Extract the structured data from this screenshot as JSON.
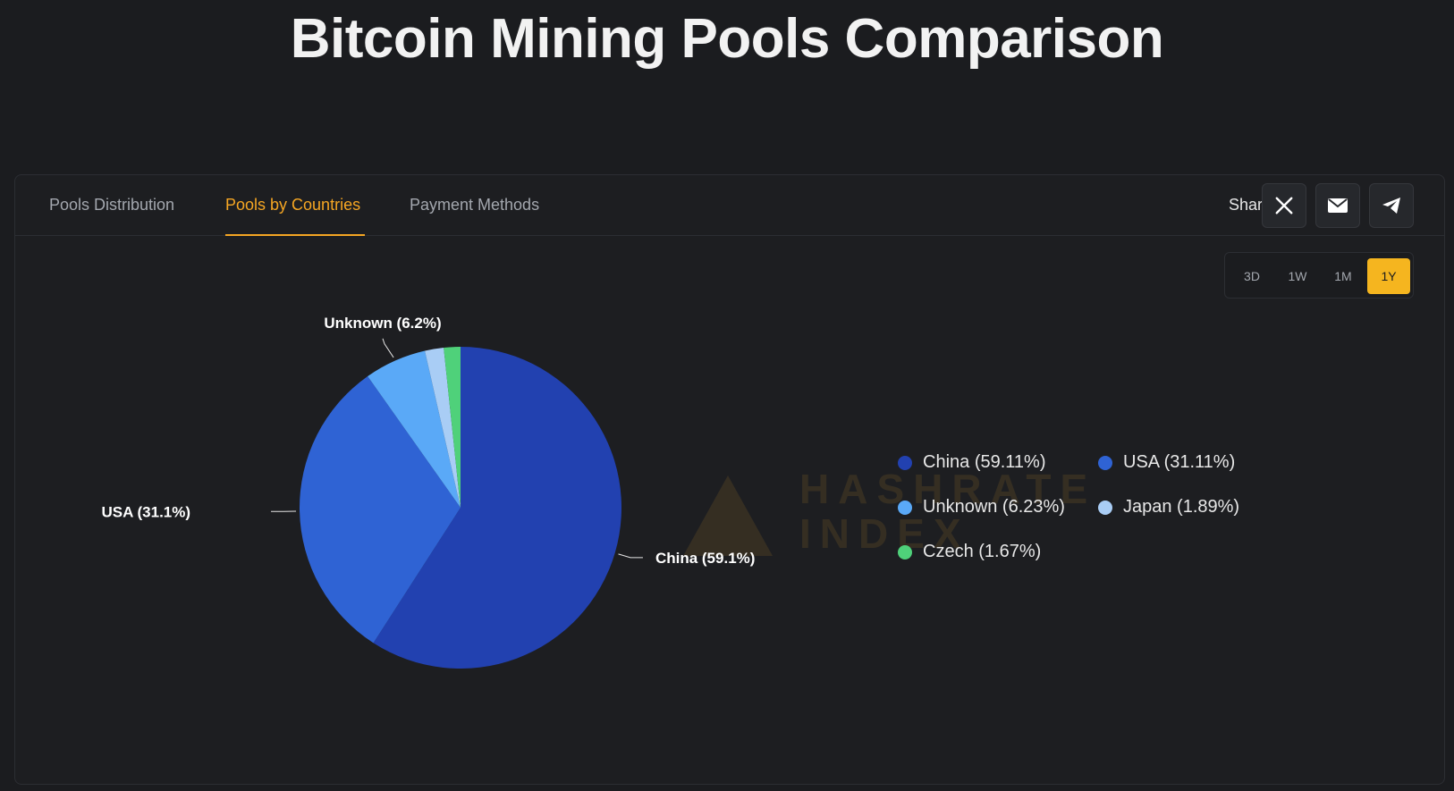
{
  "page": {
    "title": "Bitcoin Mining Pools Comparison"
  },
  "tabs": [
    {
      "label": "Pools Distribution",
      "active": false
    },
    {
      "label": "Pools by Countries",
      "active": true
    },
    {
      "label": "Payment Methods",
      "active": false
    }
  ],
  "share": {
    "label": "Share:",
    "buttons": [
      {
        "icon": "x-icon"
      },
      {
        "icon": "mail-icon"
      },
      {
        "icon": "telegram-icon"
      }
    ]
  },
  "ranges": [
    {
      "label": "3D",
      "active": false
    },
    {
      "label": "1W",
      "active": false
    },
    {
      "label": "1M",
      "active": false
    },
    {
      "label": "1Y",
      "active": true
    }
  ],
  "watermark": {
    "line1": "HASHRATE",
    "line2": "INDEX"
  },
  "colors": {
    "accent": "#f5a623",
    "china": "#2241b0",
    "usa": "#2f63d4",
    "unknown": "#5aa9f7",
    "japan": "#a9cdf5",
    "czech": "#4fd17a"
  },
  "chart_data": {
    "type": "pie",
    "slices": [
      {
        "name": "China",
        "value": 59.11,
        "label": "China (59.1%)",
        "legend": "China (59.11%)",
        "color": "#2241b0"
      },
      {
        "name": "USA",
        "value": 31.11,
        "label": "USA (31.1%)",
        "legend": "USA (31.11%)",
        "color": "#2f63d4"
      },
      {
        "name": "Unknown",
        "value": 6.23,
        "label": "Unknown (6.2%)",
        "legend": "Unknown (6.23%)",
        "color": "#5aa9f7"
      },
      {
        "name": "Japan",
        "value": 1.89,
        "label": "",
        "legend": "Japan (1.89%)",
        "color": "#a9cdf5"
      },
      {
        "name": "Czech",
        "value": 1.67,
        "label": "",
        "legend": "Czech (1.67%)",
        "color": "#4fd17a"
      }
    ],
    "legend_placement": "right"
  }
}
